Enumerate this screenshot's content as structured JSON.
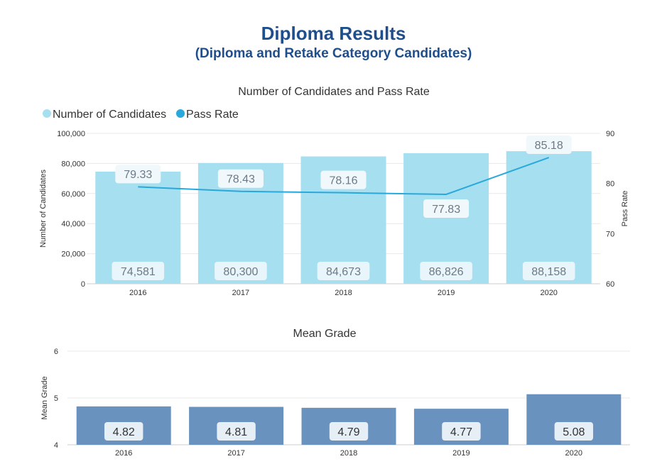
{
  "header": {
    "title": "Diploma Results",
    "subtitle": "(Diploma and Retake Category Candidates)"
  },
  "chart_data": [
    {
      "type": "bar",
      "title": "Number of Candidates and Pass Rate",
      "categories": [
        "2016",
        "2017",
        "2018",
        "2019",
        "2020"
      ],
      "series": [
        {
          "name": "Number of Candidates",
          "type": "bar",
          "axis": "left",
          "values": [
            74581,
            80300,
            84673,
            86826,
            88158
          ],
          "labels": [
            "74,581",
            "80,300",
            "84,673",
            "86,826",
            "88,158"
          ],
          "color": "#a6dff0"
        },
        {
          "name": "Pass Rate",
          "type": "line",
          "axis": "right",
          "values": [
            79.33,
            78.43,
            78.16,
            77.83,
            85.18
          ],
          "labels": [
            "79.33",
            "78.43",
            "78.16",
            "77.83",
            "85.18"
          ],
          "color": "#29a8dc"
        }
      ],
      "ylabel": "Number of Candidates",
      "ylim": [
        0,
        100000
      ],
      "yticks": [
        "0",
        "20,000",
        "40,000",
        "60,000",
        "80,000",
        "100,000"
      ],
      "y2label": "Pass Rate",
      "y2lim": [
        60,
        90
      ],
      "y2ticks": [
        "60",
        "70",
        "80",
        "90"
      ],
      "legend": "top-left",
      "grid": true
    },
    {
      "type": "bar",
      "title": "Mean Grade",
      "categories": [
        "2016",
        "2017",
        "2018",
        "2019",
        "2020"
      ],
      "series": [
        {
          "name": "Mean Grade",
          "values": [
            4.82,
            4.81,
            4.79,
            4.77,
            5.08
          ],
          "labels": [
            "4.82",
            "4.81",
            "4.79",
            "4.77",
            "5.08"
          ],
          "color": "#6a92be"
        }
      ],
      "ylabel": "Mean Grade",
      "ylim": [
        4,
        6
      ],
      "yticks": [
        "4",
        "5",
        "6"
      ],
      "grid": true
    }
  ]
}
